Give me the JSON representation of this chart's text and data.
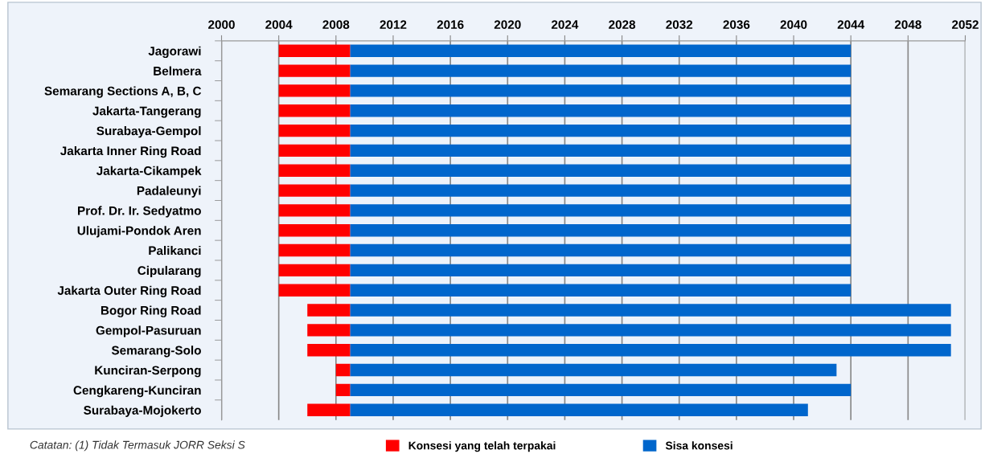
{
  "chart_data": {
    "type": "bar",
    "orientation": "horizontal",
    "categories": [
      "Jagorawi",
      "Belmera",
      "Semarang Sections A, B, C",
      "Jakarta-Tangerang",
      "Surabaya-Gempol",
      "Jakarta Inner Ring Road",
      "Jakarta-Cikampek",
      "Padaleunyi",
      "Prof. Dr. Ir. Sedyatmo",
      "Ulujami-Pondok Aren",
      "Palikanci",
      "Cipularang",
      "Jakarta Outer Ring Road",
      "Bogor Ring Road",
      "Gempol-Pasuruan",
      "Semarang-Solo",
      "Kunciran-Serpong",
      "Cengkareng-Kunciran",
      "Surabaya-Mojokerto"
    ],
    "series": [
      {
        "name": "Konsesi yang telah terpakai",
        "color": "#ff0000",
        "base": [
          2004,
          2004,
          2004,
          2004,
          2004,
          2004,
          2004,
          2004,
          2004,
          2004,
          2004,
          2004,
          2004,
          2006,
          2006,
          2006,
          2008,
          2008,
          2006
        ],
        "values": [
          5,
          5,
          5,
          5,
          5,
          5,
          5,
          5,
          5,
          5,
          5,
          5,
          5,
          3,
          3,
          3,
          1,
          1,
          3
        ]
      },
      {
        "name": "Sisa konsesi",
        "color": "#0066cc",
        "base": [
          2009,
          2009,
          2009,
          2009,
          2009,
          2009,
          2009,
          2009,
          2009,
          2009,
          2009,
          2009,
          2009,
          2009,
          2009,
          2009,
          2009,
          2009,
          2009
        ],
        "values": [
          35,
          35,
          35,
          35,
          35,
          35,
          35,
          35,
          35,
          35,
          35,
          35,
          35,
          42,
          42,
          42,
          34,
          35,
          32
        ]
      }
    ],
    "xlim": [
      2000,
      2052
    ],
    "xticks": [
      2000,
      2004,
      2008,
      2012,
      2016,
      2020,
      2024,
      2028,
      2032,
      2036,
      2040,
      2044,
      2048,
      2052
    ],
    "grid": "x",
    "legend": "bottom",
    "annotations": [
      "Catatan: (1) Tidak Termasuk JORR Seksi S"
    ]
  }
}
